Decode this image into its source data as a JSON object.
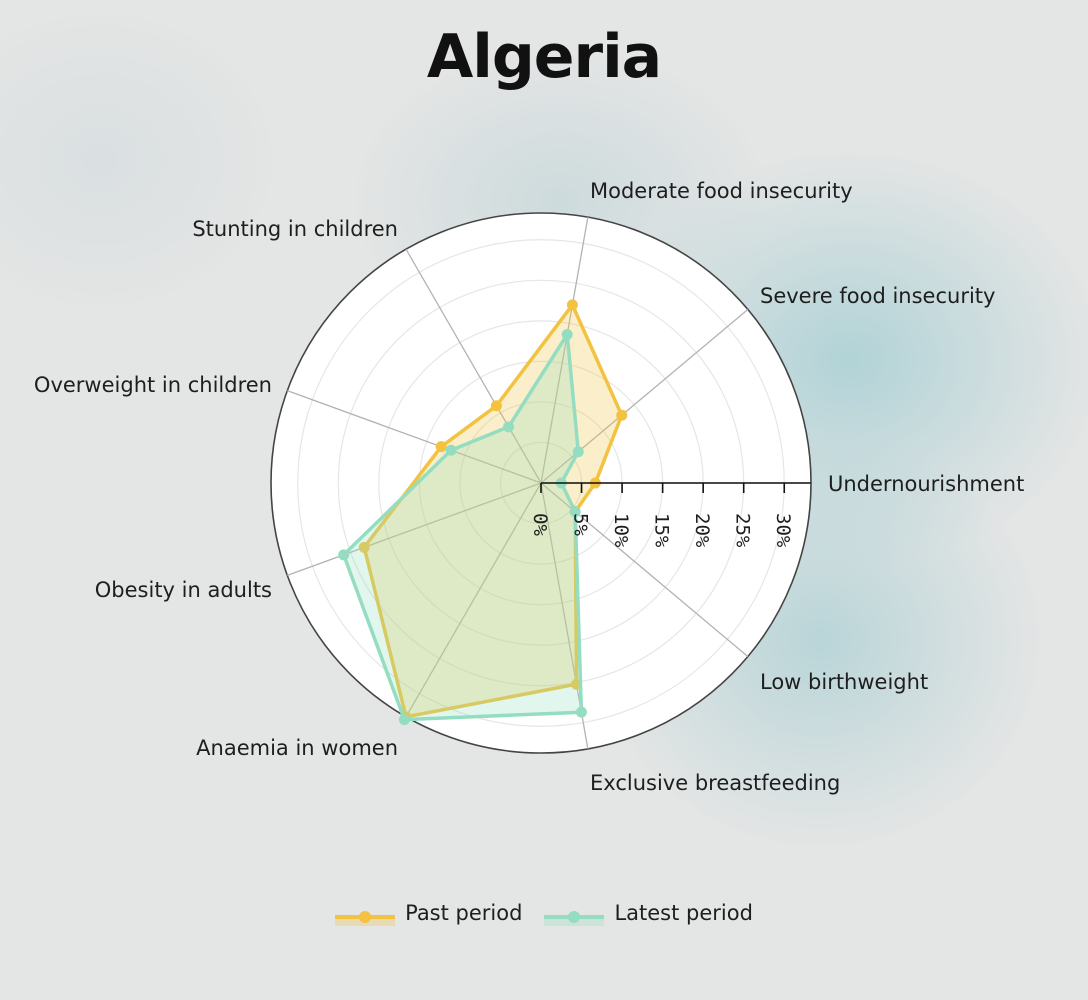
{
  "chart_data": {
    "type": "radar",
    "title": "Algeria",
    "categories": [
      "Undernourishment",
      "Severe food insecurity",
      "Moderate food insecurity",
      "Stunting in children",
      "Overweight in children",
      "Obesity in adults",
      "Anaemia in women",
      "Exclusive breastfeeding",
      "Low birthweight"
    ],
    "series": [
      {
        "name": "Past period",
        "values": [
          6.7,
          13.0,
          22.3,
          11.0,
          13.1,
          23.2,
          33.3,
          25.2,
          5.5
        ],
        "color": "#f2c240"
      },
      {
        "name": "Latest period",
        "values": [
          2.5,
          6.0,
          18.6,
          8.0,
          11.8,
          25.9,
          33.7,
          28.7,
          5.5
        ],
        "color": "#95ddc0"
      }
    ],
    "radial_ticks": [
      "0%",
      "5%",
      "10%",
      "15%",
      "20%",
      "25%",
      "30%"
    ],
    "rmax": 33.3,
    "legend_position": "bottom"
  }
}
